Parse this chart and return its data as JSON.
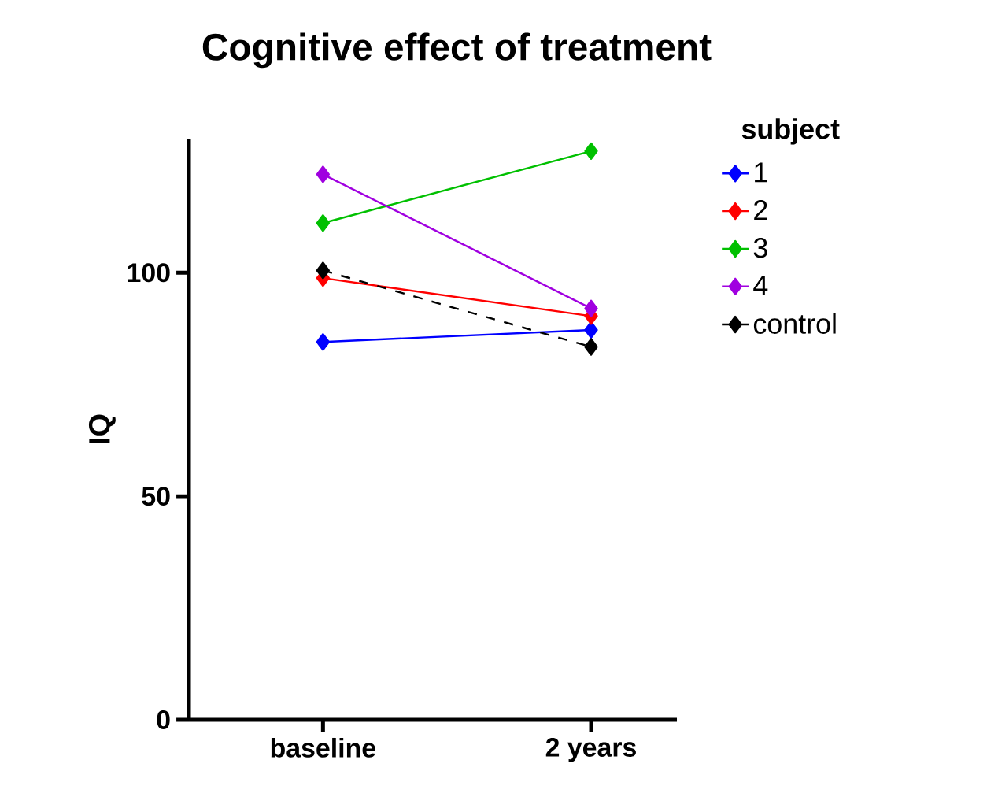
{
  "chart_data": {
    "type": "line",
    "title": "Cognitive effect of treatment",
    "ylabel": "IQ",
    "legend_title": "subject",
    "categories": [
      "baseline",
      "2 years"
    ],
    "series": [
      {
        "name": "1",
        "color": "#0000ff",
        "values": [
          84.5,
          87.2
        ]
      },
      {
        "name": "2",
        "color": "#ff0000",
        "values": [
          98.8,
          90.3
        ]
      },
      {
        "name": "3",
        "color": "#00c000",
        "values": [
          111.1,
          127.2
        ]
      },
      {
        "name": "4",
        "color": "#a000e0",
        "values": [
          122,
          92
        ]
      },
      {
        "name": "control",
        "color": "#000000",
        "values": [
          100.5,
          83.4
        ],
        "line_style": "dashed"
      }
    ],
    "ylim": [
      0,
      130
    ],
    "yticks": [
      0,
      50,
      100
    ],
    "marker": "diamond",
    "grid": false,
    "legend": "right"
  }
}
